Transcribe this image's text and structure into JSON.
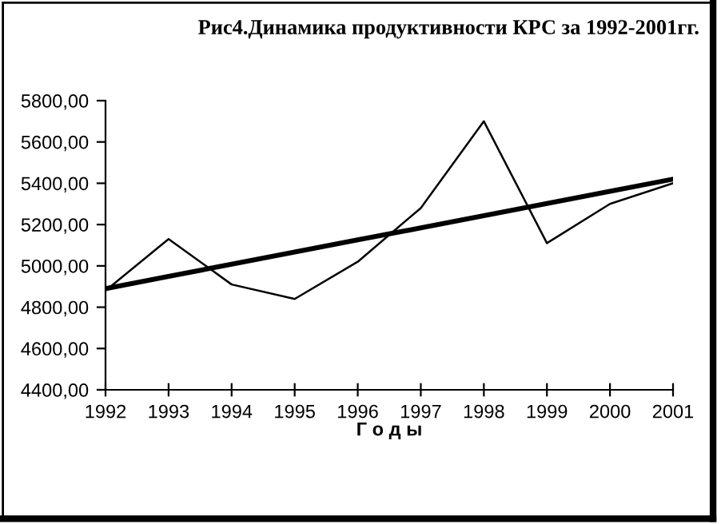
{
  "chart_data": {
    "type": "line",
    "title": "Рис4.Динамика продуктивности КРС за 1992-2001гг.",
    "xlabel": "Г о д ы",
    "categories": [
      "1992",
      "1993",
      "1994",
      "1995",
      "1996",
      "1997",
      "1998",
      "1999",
      "2000",
      "2001"
    ],
    "series": [
      {
        "color": "#000000",
        "values": [
          4880,
          5130,
          4910,
          4840,
          5020,
          5280,
          5700,
          5110,
          5300,
          5400
        ]
      },
      {
        "color": "#000000",
        "values": [
          4890,
          4949,
          5008,
          5067,
          5126,
          5184,
          5243,
          5302,
          5361,
          5420
        ]
      }
    ],
    "ylim": [
      4400,
      5800
    ],
    "yticks": [
      {
        "value": 4400,
        "label": "4400,00"
      },
      {
        "value": 4600,
        "label": "4600,00"
      },
      {
        "value": 4800,
        "label": "4800,00"
      },
      {
        "value": 5000,
        "label": "5000,00"
      },
      {
        "value": 5200,
        "label": "5200,00"
      },
      {
        "value": 5400,
        "label": "5400,00"
      },
      {
        "value": 5600,
        "label": "5600,00"
      },
      {
        "value": 5800,
        "label": "5800,00"
      }
    ],
    "grid": false,
    "marker": "none",
    "line_style": "solid"
  }
}
